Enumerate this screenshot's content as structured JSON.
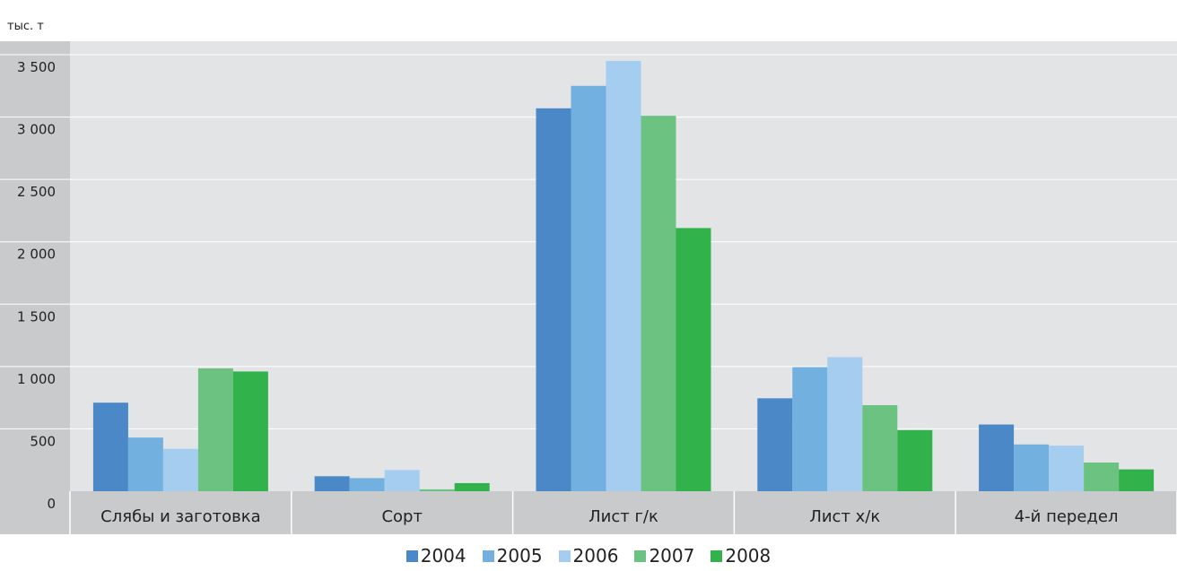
{
  "chart_data": {
    "type": "bar",
    "unit_label": "тыс. т",
    "categories": [
      "Слябы и заготовка",
      "Сорт",
      "Лист г/к",
      "Лист х/к",
      "4-й передел"
    ],
    "ylim": [
      0,
      3500
    ],
    "y_ticks": [
      "0",
      "500",
      "1 000",
      "1 500",
      "2 000",
      "2 500",
      "3 000",
      "3 500"
    ],
    "y_tick_values": [
      0,
      500,
      1000,
      1500,
      2000,
      2500,
      3000,
      3500
    ],
    "grid": true,
    "legend_position": "bottom",
    "series": [
      {
        "name": "2004",
        "color": "#4a88c8",
        "values": [
          710,
          120,
          3070,
          745,
          535
        ]
      },
      {
        "name": "2005",
        "color": "#72b0e0",
        "values": [
          430,
          105,
          3250,
          995,
          375
        ]
      },
      {
        "name": "2006",
        "color": "#a4cdf0",
        "values": [
          340,
          170,
          3450,
          1075,
          365
        ]
      },
      {
        "name": "2007",
        "color": "#6bc281",
        "values": [
          985,
          15,
          3010,
          690,
          230
        ]
      },
      {
        "name": "2008",
        "color": "#31b24b",
        "values": [
          960,
          65,
          2110,
          490,
          175
        ]
      }
    ]
  }
}
